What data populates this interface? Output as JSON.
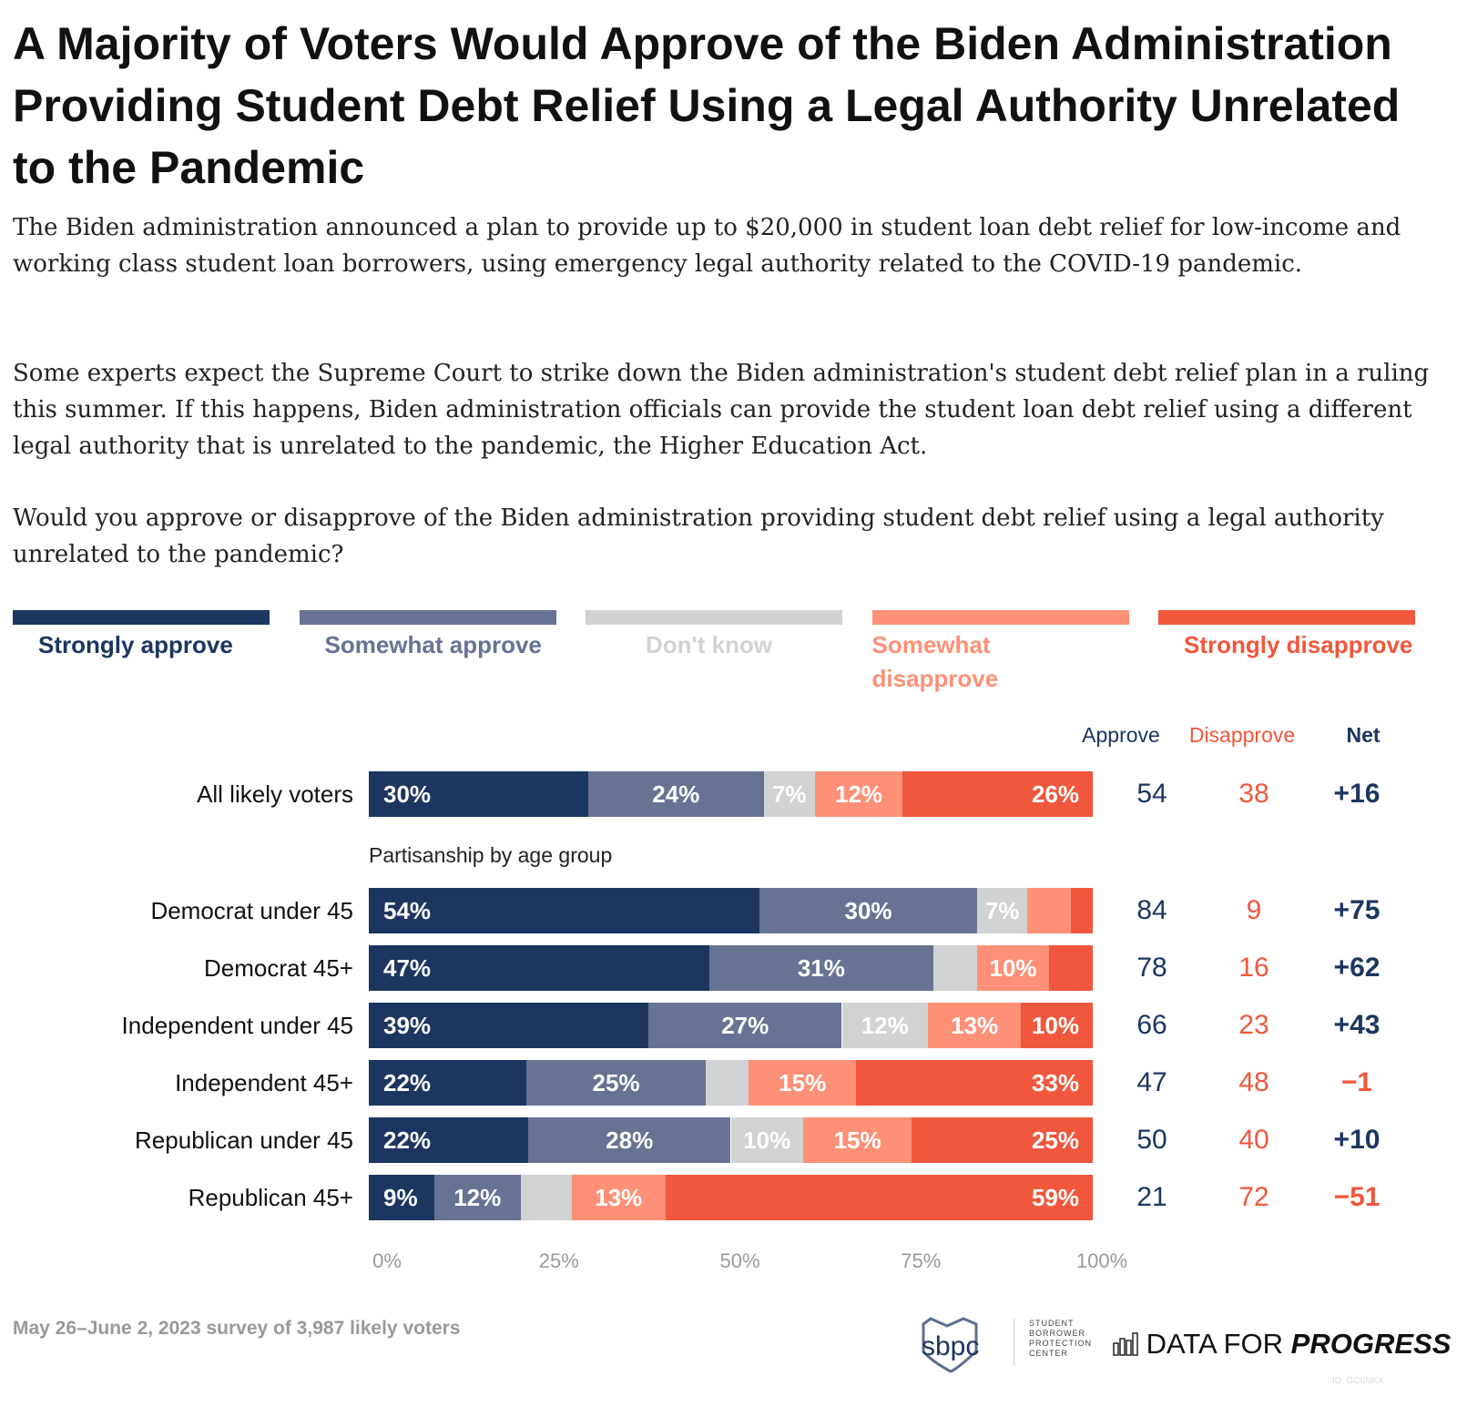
{
  "title": "A Majority of Voters Would Approve of the Biden Administration Providing Student Debt Relief Using a Legal Authority Unrelated to the Pandemic",
  "paragraphs": [
    "The Biden administration announced a plan to provide up to $20,000 in student loan debt relief for low-income and working class student loan borrowers, using emergency legal authority related to the COVID-19 pandemic.",
    "Some experts expect the Supreme Court to strike down the Biden administration's student debt relief plan in a ruling this summer. If this happens, Biden administration officials can provide the student loan debt relief using a different legal authority that is unrelated to the pandemic, the Higher Education Act.",
    "Would you approve or disapprove of the Biden administration providing student debt relief using a legal authority unrelated to the pandemic?"
  ],
  "legend": [
    {
      "label": "Strongly approve",
      "color": "#1c3661"
    },
    {
      "label": "Somewhat approve",
      "color": "#687394"
    },
    {
      "label": "Don't know",
      "color": "#d1d2d4"
    },
    {
      "label": "Somewhat disapprove",
      "color": "#fe9078"
    },
    {
      "label": "Strongly disapprove",
      "color": "#f0573c"
    }
  ],
  "columns": {
    "approve": "Approve",
    "disapprove": "Disapprove",
    "net": "Net"
  },
  "section_label": "Partisanship by age group",
  "footer": {
    "source": "May 26–June 2, 2023 survey of 3,987 likely voters",
    "logo1": "sbpc",
    "logo1_text": [
      "STUDENT",
      "BORROWER",
      "PROTECTION",
      "CENTER"
    ],
    "logo2_a": "DATA FOR",
    "logo2_b": "PROGRESS",
    "id": "ID: GC6NKX"
  },
  "chart_data": {
    "type": "bar",
    "orientation": "horizontal-stacked",
    "xlim": [
      0,
      100
    ],
    "x_ticks": [
      "0%",
      "25%",
      "50%",
      "75%",
      "100%"
    ],
    "series_names": [
      "Strongly approve",
      "Somewhat approve",
      "Don't know",
      "Somewhat disapprove",
      "Strongly disapprove"
    ],
    "rows": [
      {
        "label": "All likely voters",
        "values": [
          30,
          24,
          7,
          12,
          26
        ],
        "labels": [
          "30%",
          "24%",
          "7%",
          "12%",
          "26%"
        ],
        "approve": "54",
        "disapprove": "38",
        "net": "+16",
        "net_positive": true
      },
      {
        "label": "Democrat under 45",
        "values": [
          54,
          30,
          7,
          6,
          3
        ],
        "labels": [
          "54%",
          "30%",
          "7%",
          "",
          ""
        ],
        "approve": "84",
        "disapprove": "9",
        "net": "+75",
        "net_positive": true
      },
      {
        "label": "Democrat 45+",
        "values": [
          47,
          31,
          6,
          10,
          6
        ],
        "labels": [
          "47%",
          "31%",
          "",
          "10%",
          ""
        ],
        "approve": "78",
        "disapprove": "16",
        "net": "+62",
        "net_positive": true
      },
      {
        "label": "Independent under 45",
        "values": [
          39,
          27,
          12,
          13,
          10
        ],
        "labels": [
          "39%",
          "27%",
          "12%",
          "13%",
          "10%"
        ],
        "approve": "66",
        "disapprove": "23",
        "net": "+43",
        "net_positive": true
      },
      {
        "label": "Independent 45+",
        "values": [
          22,
          25,
          6,
          15,
          33
        ],
        "labels": [
          "22%",
          "25%",
          "",
          "15%",
          "33%"
        ],
        "approve": "47",
        "disapprove": "48",
        "net": "−1",
        "net_positive": false
      },
      {
        "label": "Republican under 45",
        "values": [
          22,
          28,
          10,
          15,
          25
        ],
        "labels": [
          "22%",
          "28%",
          "10%",
          "15%",
          "25%"
        ],
        "approve": "50",
        "disapprove": "40",
        "net": "+10",
        "net_positive": true
      },
      {
        "label": "Republican 45+",
        "values": [
          9,
          12,
          7,
          13,
          59
        ],
        "labels": [
          "9%",
          "12%",
          "",
          "13%",
          "59%"
        ],
        "approve": "21",
        "disapprove": "72",
        "net": "−51",
        "net_positive": false
      }
    ]
  }
}
